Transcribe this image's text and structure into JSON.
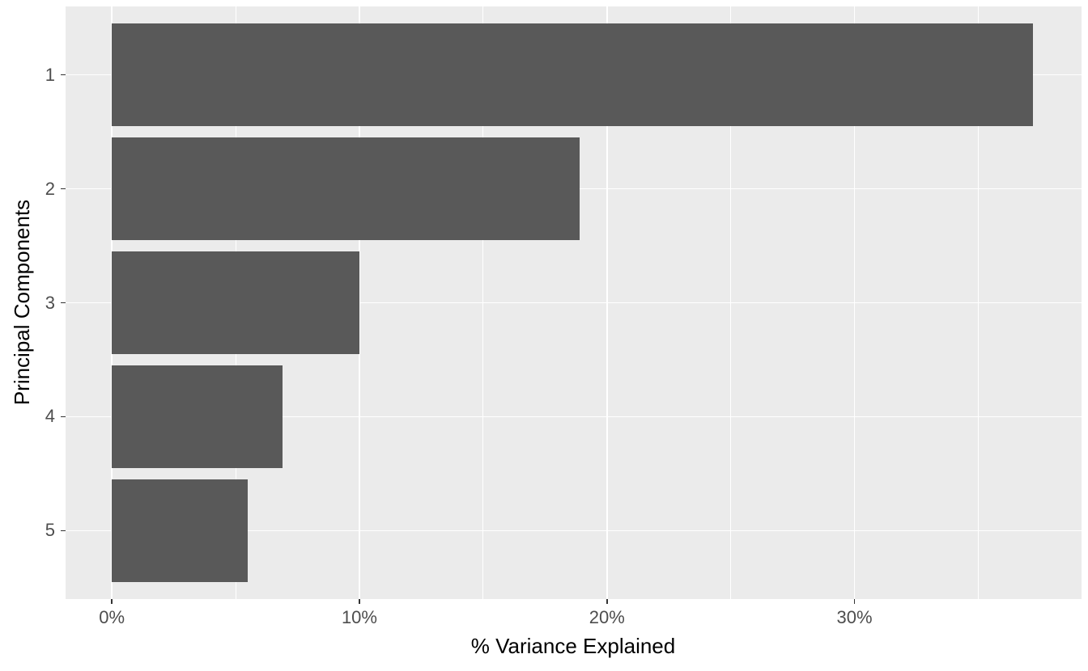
{
  "chart_data": {
    "type": "bar",
    "orientation": "horizontal",
    "title": "",
    "xlabel": "% Variance Explained",
    "ylabel": "Principal Components",
    "categories": [
      "1",
      "2",
      "3",
      "4",
      "5"
    ],
    "values": [
      37.2,
      18.9,
      10.0,
      6.9,
      5.5
    ],
    "xlim": [
      -1.87,
      39.17
    ],
    "x_major_ticks": [
      0,
      10,
      20,
      30
    ],
    "x_tick_labels": [
      "0%",
      "10%",
      "20%",
      "30%"
    ],
    "x_minor_ticks": [
      5,
      15,
      25,
      35
    ],
    "bar_color": "#595959",
    "panel_bg": "#EBEBEB",
    "grid_color": "#FFFFFF",
    "tick_color": "#333333",
    "axis_text_color": "#4D4D4D",
    "bar_width_ratio": 0.9,
    "y_expansion": 0.6,
    "grid": true,
    "legend": "none"
  }
}
